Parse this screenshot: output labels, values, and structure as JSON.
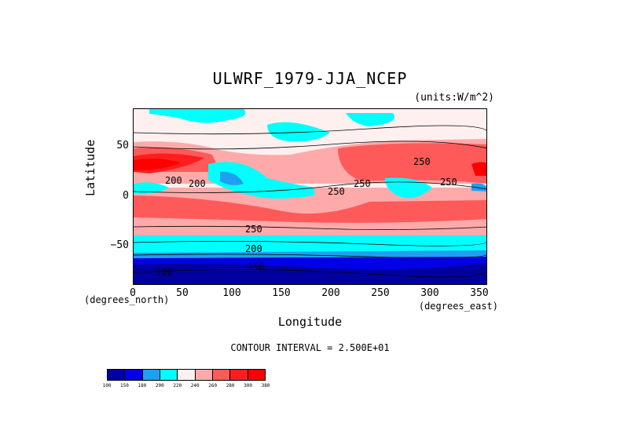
{
  "title": "ULWRF_1979-JJA_NCEP",
  "units": "(units:W/m^2)",
  "axes": {
    "ylabel": "Latitude",
    "xlabel": "Longitude",
    "y_unit": "(degrees_north)",
    "x_unit": "(degrees_east)",
    "y_ticks": [
      "50",
      "0",
      "−50"
    ],
    "x_ticks": [
      "0",
      "50",
      "100",
      "150",
      "200",
      "250",
      "300",
      "350"
    ],
    "xlim": [
      0,
      357.5
    ],
    "ylim": [
      -90,
      90
    ]
  },
  "contour_interval": "CONTOUR INTERVAL = 2.500E+01",
  "contour_labels": [
    "200",
    "200",
    "250",
    "250",
    "250",
    "250",
    "250",
    "200",
    "150",
    "100"
  ],
  "colorbar": {
    "levels": [
      "100",
      "150",
      "180",
      "200",
      "220",
      "240",
      "260",
      "280",
      "300",
      "380"
    ],
    "colors": [
      "#0000a0",
      "#0000e6",
      "#1ea0f0",
      "#00ffff",
      "#fff0f0",
      "#ffaaaa",
      "#ff5a5a",
      "#ff1e1e",
      "#ff0000"
    ]
  }
}
